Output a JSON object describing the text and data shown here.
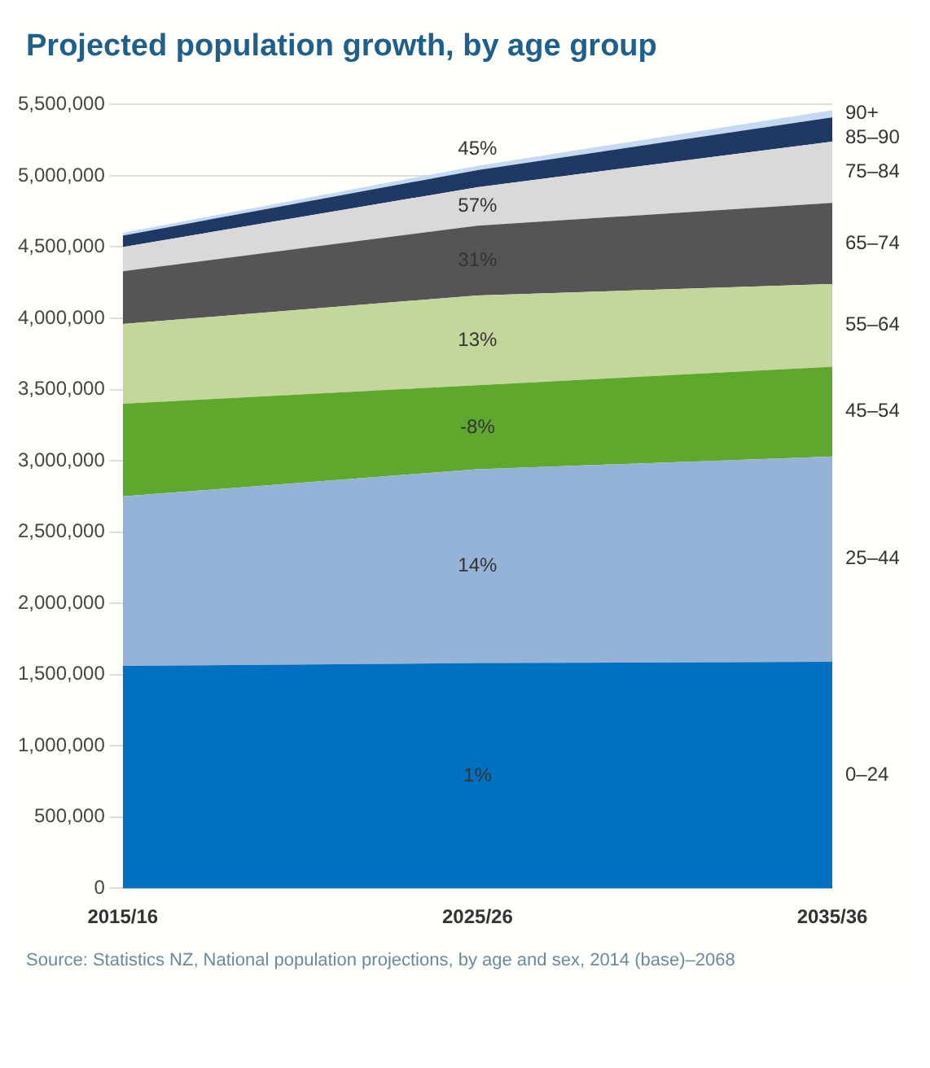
{
  "chart_data": {
    "type": "area",
    "title": "Projected population growth, by age group",
    "stacked": true,
    "categories": [
      "2015/16",
      "2025/26",
      "2035/36"
    ],
    "series": [
      {
        "name": "0–24",
        "color": "#0070c0",
        "values": [
          1560000,
          1580000,
          1590000
        ]
      },
      {
        "name": "25–44",
        "color": "#95b3d7",
        "values": [
          1190000,
          1360000,
          1440000
        ]
      },
      {
        "name": "45–54",
        "color": "#5ea82e",
        "values": [
          650000,
          590000,
          630000
        ]
      },
      {
        "name": "55–64",
        "color": "#c4d79b",
        "values": [
          560000,
          630000,
          580000
        ]
      },
      {
        "name": "65–74",
        "color": "#555555",
        "values": [
          370000,
          490000,
          570000
        ]
      },
      {
        "name": "75–84",
        "color": "#d9d9d9",
        "values": [
          170000,
          270000,
          430000
        ]
      },
      {
        "name": "85–90",
        "color": "#1f3864",
        "values": [
          80000,
          120000,
          170000
        ]
      },
      {
        "name": "90+",
        "color": "#c5d9f1",
        "values": [
          20000,
          30000,
          50000
        ]
      }
    ],
    "ylim": [
      0,
      5500000
    ],
    "yticks": [
      0,
      {
        "value": 500000,
        "label": "500,000"
      },
      {
        "value": 1000000,
        "label": "1,000,000"
      },
      {
        "value": 1500000,
        "label": "1,500,000"
      },
      {
        "value": 2000000,
        "label": "2,000,000"
      },
      {
        "value": 2500000,
        "label": "2,500,000"
      },
      {
        "value": 3000000,
        "label": "3,000,000"
      },
      {
        "value": 3500000,
        "label": "3,500,000"
      },
      {
        "value": 4000000,
        "label": "4,000,000"
      },
      {
        "value": 4500000,
        "label": "4,500,000"
      },
      {
        "value": 5000000,
        "label": "5,000,000"
      },
      {
        "value": 5500000,
        "label": "5,500,000"
      }
    ],
    "grid": "y",
    "legend": false,
    "marker": "none",
    "annotations": [
      "1%",
      "14%",
      "-8%",
      "13%",
      "31%",
      "57%",
      "45%",
      "Source: Statistics NZ, National population projections, by age and sex, 2014 (base)–2068"
    ]
  }
}
